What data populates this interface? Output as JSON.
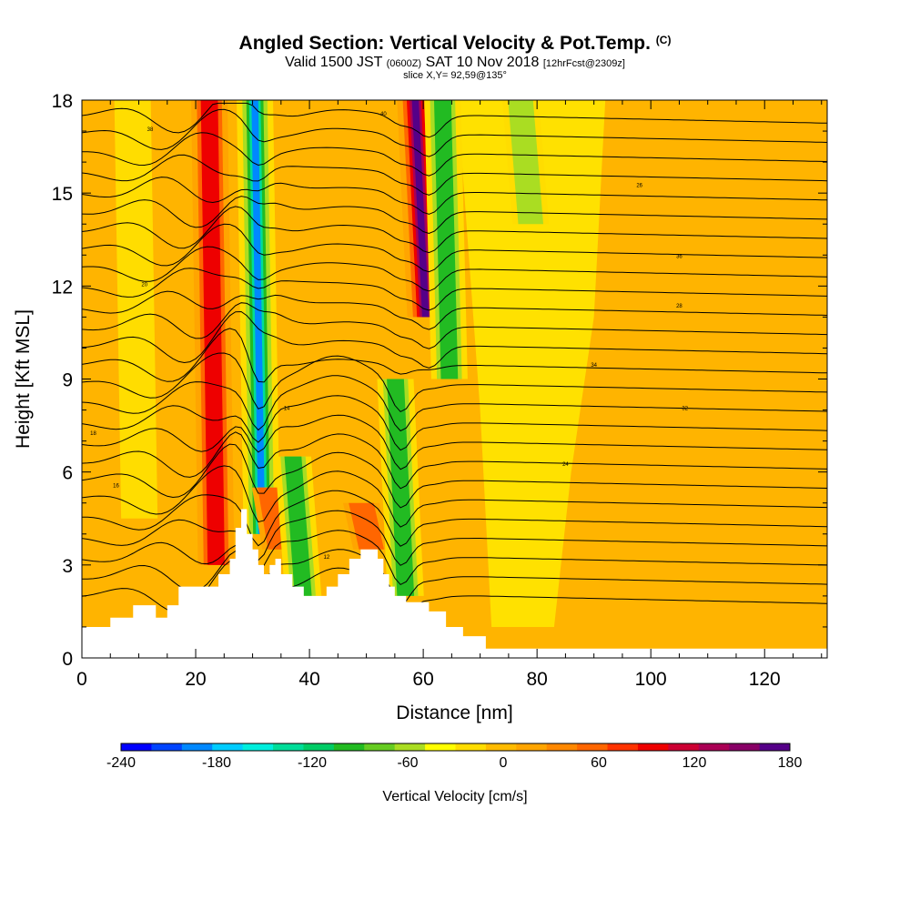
{
  "chart_data": {
    "type": "heatmap",
    "title": "Angled Section: Vertical Velocity & Pot.Temp.",
    "title_unit": "(C)",
    "subtitle_valid": "Valid 1500 JST",
    "subtitle_utc": "(0600Z)",
    "subtitle_date": "SAT 10 Nov 2018",
    "subtitle_fcst": "[12hrFcst@2309z]",
    "slice": "slice X,Y= 92,59@135°",
    "xlabel": "Distance [nm]",
    "ylabel": "Height [Kft MSL]",
    "xlim": [
      0,
      131
    ],
    "ylim": [
      0,
      18
    ],
    "xticks": [
      "0",
      "20",
      "40",
      "60",
      "80",
      "100",
      "120"
    ],
    "yticks": [
      "0",
      "3",
      "6",
      "9",
      "12",
      "15",
      "18"
    ],
    "colorbar": {
      "title": "Vertical Velocity [cm/s]",
      "tick_labels": [
        "-240",
        "-180",
        "-120",
        "-60",
        "0",
        "60",
        "120",
        "180"
      ],
      "range": [
        -240,
        180
      ],
      "colors": [
        "#0000ff",
        "#0044ff",
        "#0088ff",
        "#00ccff",
        "#00eedd",
        "#00dd99",
        "#00cc66",
        "#22bb22",
        "#66cc22",
        "#aadd22",
        "#ffff00",
        "#ffdd00",
        "#ffbb00",
        "#ffa500",
        "#ff8800",
        "#ff6600",
        "#ff3300",
        "#ee0000",
        "#cc0033",
        "#aa0055",
        "#880066",
        "#550088"
      ]
    },
    "features": [
      {
        "kind": "downdraft",
        "x": 9.5,
        "ztop": 18,
        "zbot": 4.5,
        "value": -40
      },
      {
        "kind": "updraft",
        "x": 23,
        "ztop": 18,
        "zbot": 3.0,
        "value": 100
      },
      {
        "kind": "downdraft",
        "x": 31,
        "ztop": 18,
        "zbot": 4.0,
        "value": -190
      },
      {
        "kind": "updraft",
        "x": 34,
        "ztop": 5.5,
        "zbot": 3.5,
        "value": 80
      },
      {
        "kind": "downdraft",
        "x": 38,
        "ztop": 6.5,
        "zbot": 2.0,
        "value": -110
      },
      {
        "kind": "updraft",
        "x": 50,
        "ztop": 5.0,
        "zbot": 3.5,
        "value": 60
      },
      {
        "kind": "downdraft",
        "x": 56,
        "ztop": 9.0,
        "zbot": 2.0,
        "value": -100
      },
      {
        "kind": "updraft",
        "x": 59.5,
        "ztop": 18,
        "zbot": 11,
        "value": 170
      },
      {
        "kind": "downdraft",
        "x": 64,
        "ztop": 18,
        "zbot": 9,
        "value": -120
      },
      {
        "kind": "downdraft",
        "x": 78,
        "ztop": 18,
        "zbot": 14,
        "value": -60
      }
    ],
    "terrain_kft": [
      [
        0,
        1.0
      ],
      [
        5,
        1.0
      ],
      [
        5,
        1.3
      ],
      [
        9,
        1.3
      ],
      [
        9,
        1.7
      ],
      [
        13,
        1.7
      ],
      [
        13,
        1.3
      ],
      [
        15,
        1.3
      ],
      [
        15,
        1.7
      ],
      [
        17,
        1.7
      ],
      [
        17,
        2.3
      ],
      [
        24,
        2.3
      ],
      [
        24,
        2.7
      ],
      [
        26,
        2.7
      ],
      [
        26,
        3.2
      ],
      [
        27,
        3.2
      ],
      [
        27,
        4.2
      ],
      [
        28,
        4.2
      ],
      [
        28,
        4.8
      ],
      [
        29,
        4.8
      ],
      [
        29,
        4.0
      ],
      [
        30,
        4.0
      ],
      [
        30,
        3.5
      ],
      [
        31,
        3.5
      ],
      [
        31,
        3.0
      ],
      [
        32,
        3.0
      ],
      [
        32,
        2.7
      ],
      [
        33,
        2.7
      ],
      [
        33,
        3.0
      ],
      [
        34,
        3.0
      ],
      [
        34,
        3.2
      ],
      [
        35,
        3.2
      ],
      [
        35,
        2.7
      ],
      [
        37,
        2.7
      ],
      [
        37,
        2.3
      ],
      [
        39,
        2.3
      ],
      [
        39,
        2.0
      ],
      [
        43,
        2.0
      ],
      [
        43,
        2.3
      ],
      [
        45,
        2.3
      ],
      [
        45,
        2.7
      ],
      [
        47,
        2.7
      ],
      [
        47,
        3.2
      ],
      [
        49,
        3.2
      ],
      [
        49,
        3.5
      ],
      [
        52,
        3.5
      ],
      [
        52,
        3.2
      ],
      [
        53,
        3.2
      ],
      [
        53,
        2.7
      ],
      [
        54,
        2.7
      ],
      [
        54,
        2.3
      ],
      [
        55,
        2.3
      ],
      [
        55,
        2.0
      ],
      [
        57,
        2.0
      ],
      [
        57,
        1.8
      ],
      [
        61,
        1.8
      ],
      [
        61,
        1.5
      ],
      [
        64,
        1.5
      ],
      [
        64,
        1.0
      ],
      [
        67,
        1.0
      ],
      [
        67,
        0.7
      ],
      [
        71,
        0.7
      ],
      [
        71,
        0.3
      ],
      [
        131,
        0.3
      ]
    ],
    "isentrope_labels": [
      "38",
      "40",
      "26",
      "36",
      "28",
      "34",
      "32",
      "24",
      "20",
      "18",
      "16",
      "14",
      "12"
    ]
  }
}
